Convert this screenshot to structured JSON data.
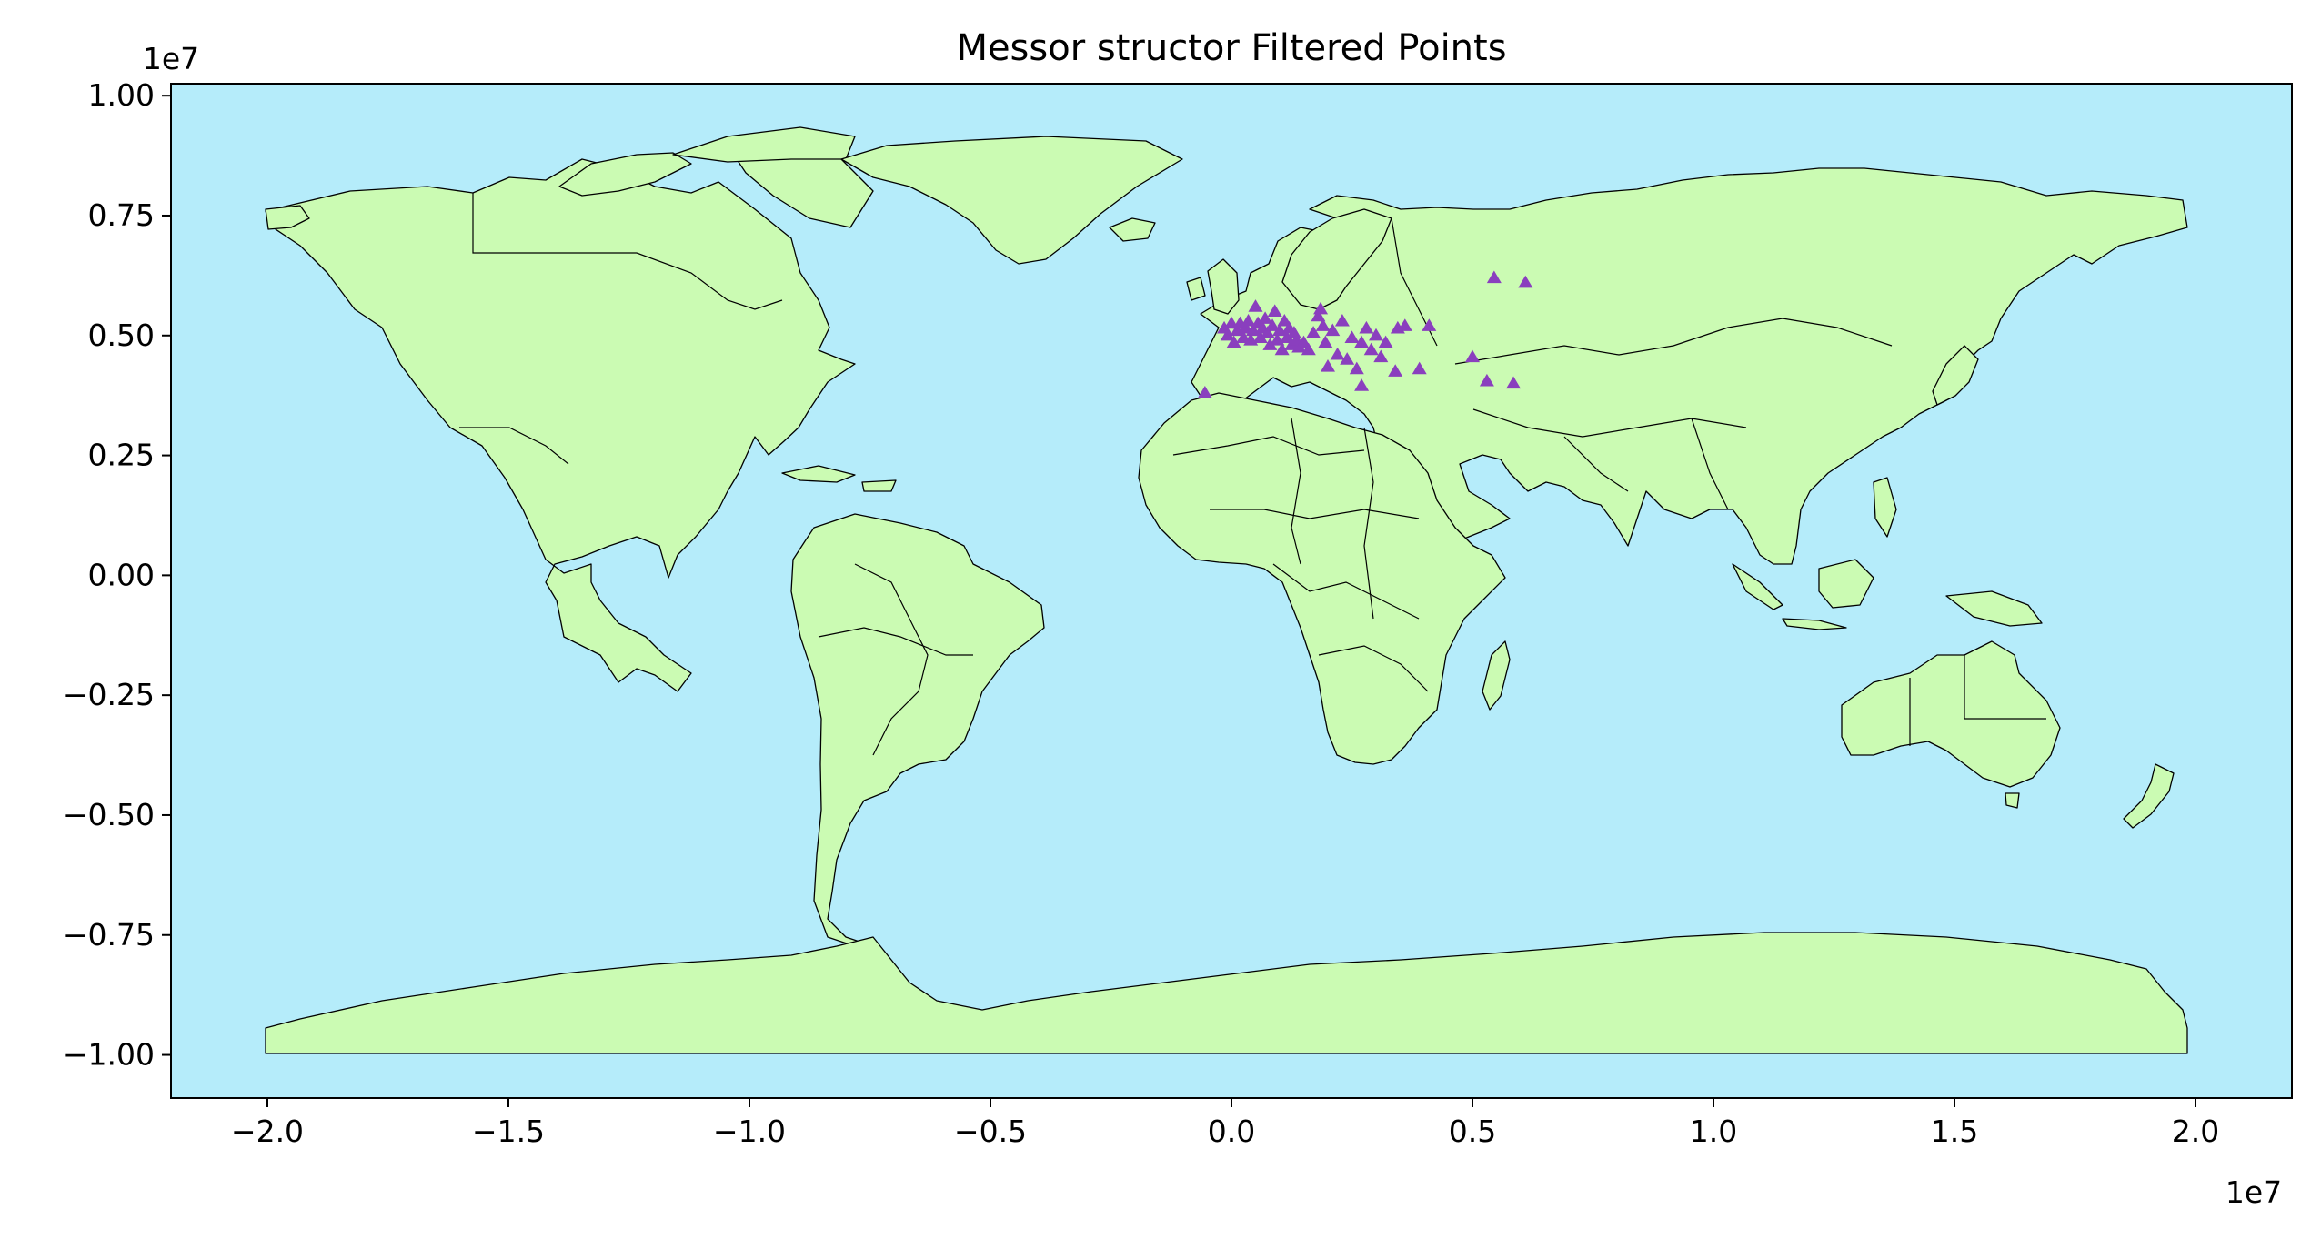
{
  "chart_data": {
    "type": "scatter",
    "title": "Messor structor Filtered Points",
    "xlim": [
      -22000000,
      22000000
    ],
    "ylim": [
      -10900000,
      10250000
    ],
    "x_ticks": [
      -20000000,
      -15000000,
      -10000000,
      -5000000,
      0,
      5000000,
      10000000,
      15000000,
      20000000
    ],
    "x_tick_labels": [
      "−2.0",
      "−1.5",
      "−1.0",
      "−0.5",
      "0.0",
      "0.5",
      "1.0",
      "1.5",
      "2.0"
    ],
    "x_offset_label": "1e7",
    "y_ticks": [
      10000000,
      7500000,
      5000000,
      2500000,
      0,
      -2500000,
      -5000000,
      -7500000,
      -10000000
    ],
    "y_tick_labels": [
      "1.00",
      "0.75",
      "0.50",
      "0.25",
      "0.00",
      "−0.25",
      "−0.50",
      "−0.75",
      "−1.00"
    ],
    "y_offset_label": "1e7",
    "grid": false,
    "marker": "triangle",
    "colors": {
      "ocean": "#b5ecfa",
      "land": "#cbfbb3",
      "border": "#000000",
      "points": "#8a3fbe"
    },
    "points": [
      [
        -550000,
        3800000
      ],
      [
        -150000,
        5150000
      ],
      [
        -80000,
        5000000
      ],
      [
        0,
        5250000
      ],
      [
        50000,
        4850000
      ],
      [
        120000,
        5100000
      ],
      [
        180000,
        5250000
      ],
      [
        250000,
        4950000
      ],
      [
        300000,
        5150000
      ],
      [
        350000,
        5300000
      ],
      [
        400000,
        4900000
      ],
      [
        450000,
        5100000
      ],
      [
        500000,
        5600000
      ],
      [
        550000,
        5250000
      ],
      [
        600000,
        4950000
      ],
      [
        650000,
        5150000
      ],
      [
        700000,
        5350000
      ],
      [
        750000,
        5050000
      ],
      [
        800000,
        4800000
      ],
      [
        850000,
        5200000
      ],
      [
        900000,
        5500000
      ],
      [
        950000,
        4900000
      ],
      [
        1000000,
        5100000
      ],
      [
        1050000,
        4700000
      ],
      [
        1100000,
        5300000
      ],
      [
        1150000,
        4950000
      ],
      [
        1200000,
        5150000
      ],
      [
        1250000,
        4800000
      ],
      [
        1300000,
        5050000
      ],
      [
        1350000,
        4900000
      ],
      [
        1400000,
        4750000
      ],
      [
        1500000,
        4850000
      ],
      [
        1600000,
        4700000
      ],
      [
        1700000,
        5050000
      ],
      [
        1800000,
        5400000
      ],
      [
        1850000,
        5550000
      ],
      [
        1900000,
        5200000
      ],
      [
        1950000,
        4850000
      ],
      [
        2000000,
        4350000
      ],
      [
        2100000,
        5100000
      ],
      [
        2200000,
        4600000
      ],
      [
        2300000,
        5300000
      ],
      [
        2400000,
        4500000
      ],
      [
        2500000,
        4950000
      ],
      [
        2600000,
        4300000
      ],
      [
        2700000,
        3950000
      ],
      [
        2700000,
        4850000
      ],
      [
        2800000,
        5150000
      ],
      [
        2900000,
        4700000
      ],
      [
        3000000,
        5000000
      ],
      [
        3100000,
        4550000
      ],
      [
        3200000,
        4850000
      ],
      [
        3400000,
        4250000
      ],
      [
        3450000,
        5150000
      ],
      [
        3600000,
        5200000
      ],
      [
        3900000,
        4300000
      ],
      [
        4100000,
        5200000
      ],
      [
        5000000,
        4550000
      ],
      [
        5300000,
        4050000
      ],
      [
        5450000,
        6200000
      ],
      [
        5850000,
        4000000
      ],
      [
        6100000,
        6100000
      ]
    ]
  }
}
